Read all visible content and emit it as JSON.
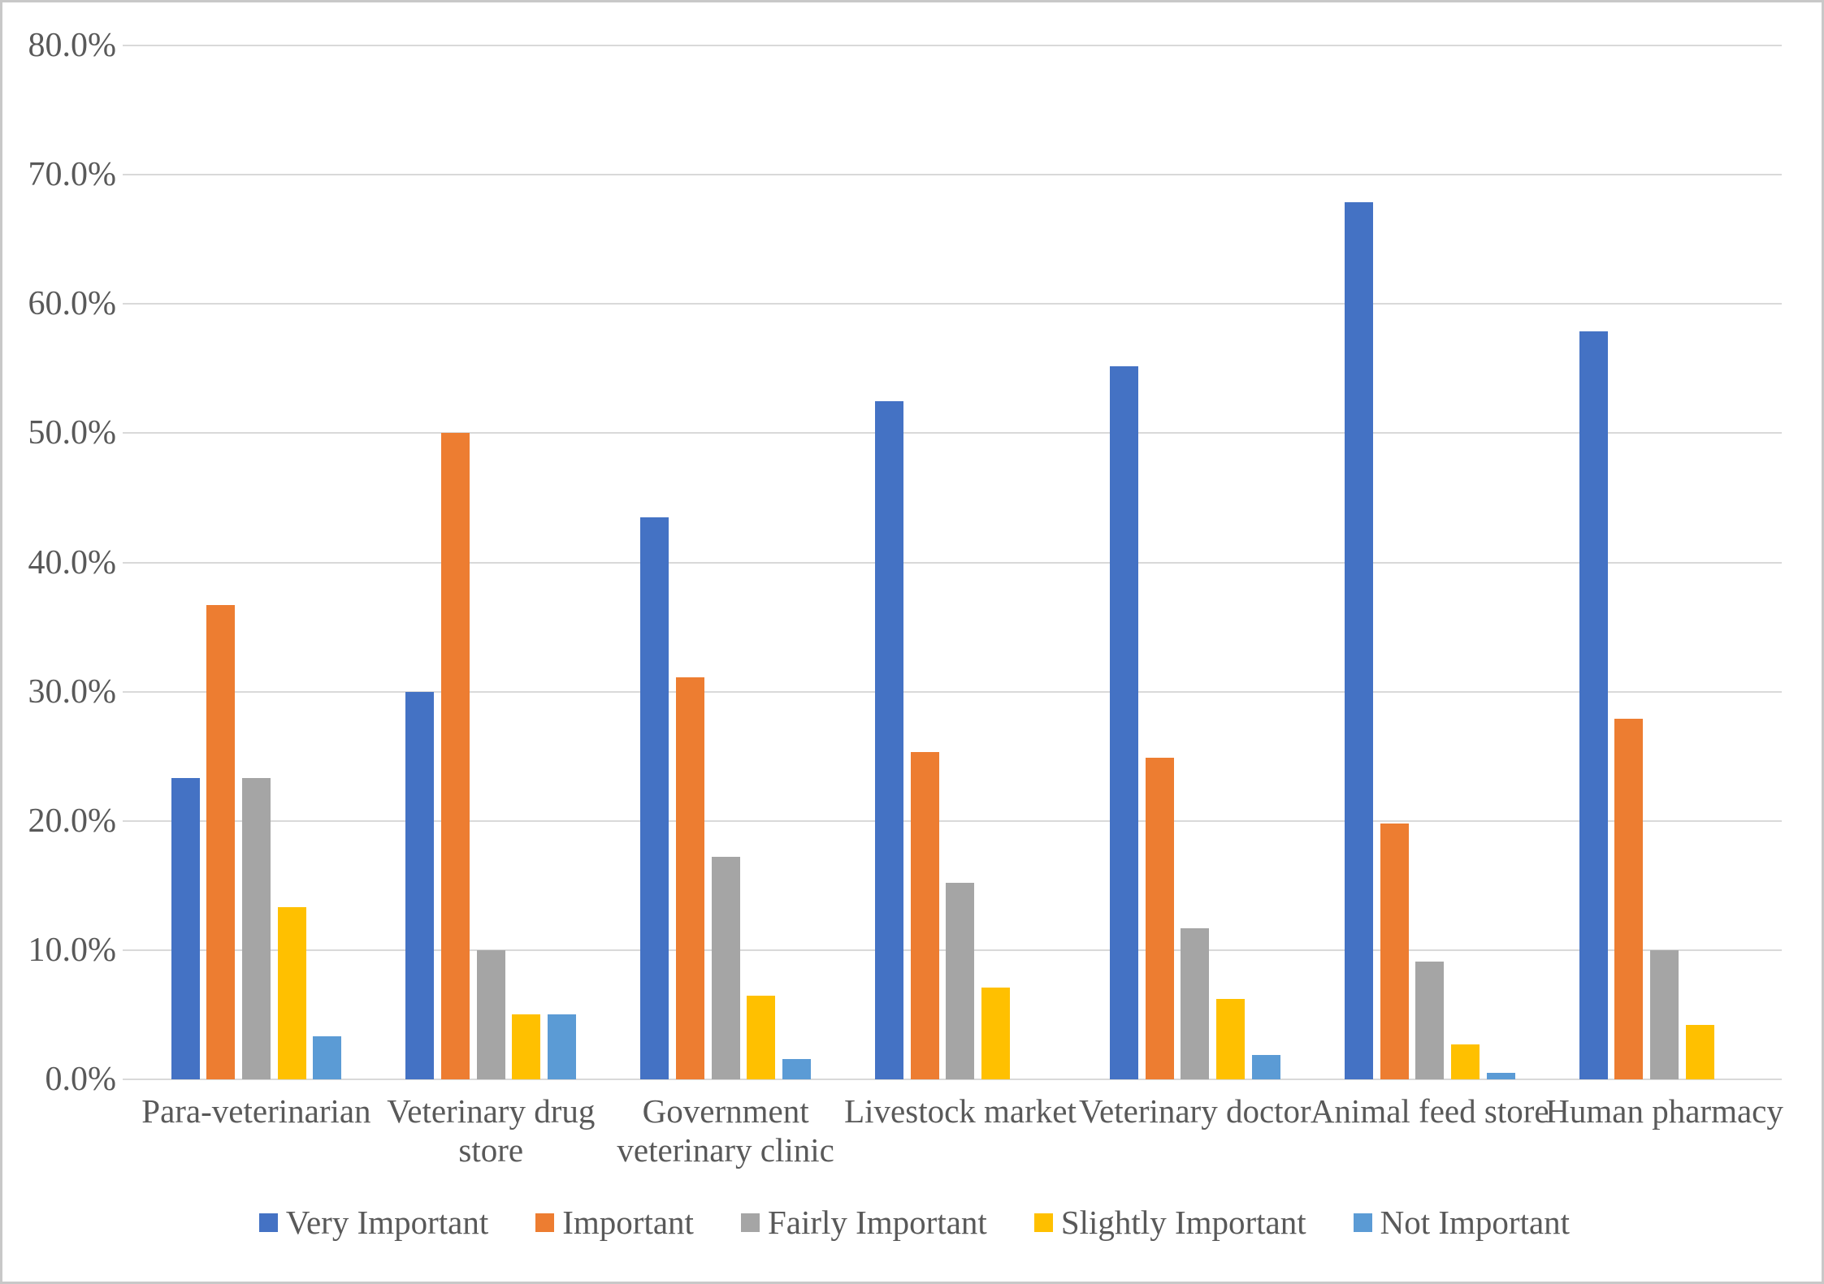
{
  "chart_data": {
    "type": "bar",
    "title": "",
    "categories": [
      "Para-veterinarian",
      "Veterinary drug store",
      "Government veterinary clinic",
      "Livestock market",
      "Veterinary doctor",
      "Animal feed store",
      "Human pharmacy"
    ],
    "series": [
      {
        "name": "Very Important",
        "color": "#4472C4",
        "values": [
          23.3,
          30.0,
          43.5,
          52.5,
          55.2,
          67.9,
          57.9
        ]
      },
      {
        "name": "Important",
        "color": "#ED7D31",
        "values": [
          36.7,
          50.0,
          31.1,
          25.3,
          24.9,
          19.8,
          27.9
        ]
      },
      {
        "name": "Fairly Important",
        "color": "#A5A5A5",
        "values": [
          23.3,
          10.0,
          17.2,
          15.2,
          11.7,
          9.1,
          10.0
        ]
      },
      {
        "name": "Slightly Important",
        "color": "#FFC000",
        "values": [
          13.3,
          5.0,
          6.5,
          7.1,
          6.2,
          2.7,
          4.2
        ]
      },
      {
        "name": "Not Important",
        "color": "#5B9BD5",
        "values": [
          3.3,
          5.0,
          1.6,
          0,
          1.9,
          0.5,
          0
        ]
      }
    ],
    "y_axis": {
      "unit": "%",
      "min": 0,
      "max": 80,
      "step": 10,
      "tick_labels": [
        "0.0%",
        "10.0%",
        "20.0%",
        "30.0%",
        "40.0%",
        "50.0%",
        "60.0%",
        "70.0%",
        "80.0%"
      ]
    },
    "x_axis_label": "",
    "y_axis_label": "",
    "grid": true,
    "legend_position": "bottom"
  },
  "colors": {
    "gridline": "#D9D9D9",
    "axis_text": "#595959",
    "background": "#FFFFFF",
    "border": "#C8C8C8"
  }
}
